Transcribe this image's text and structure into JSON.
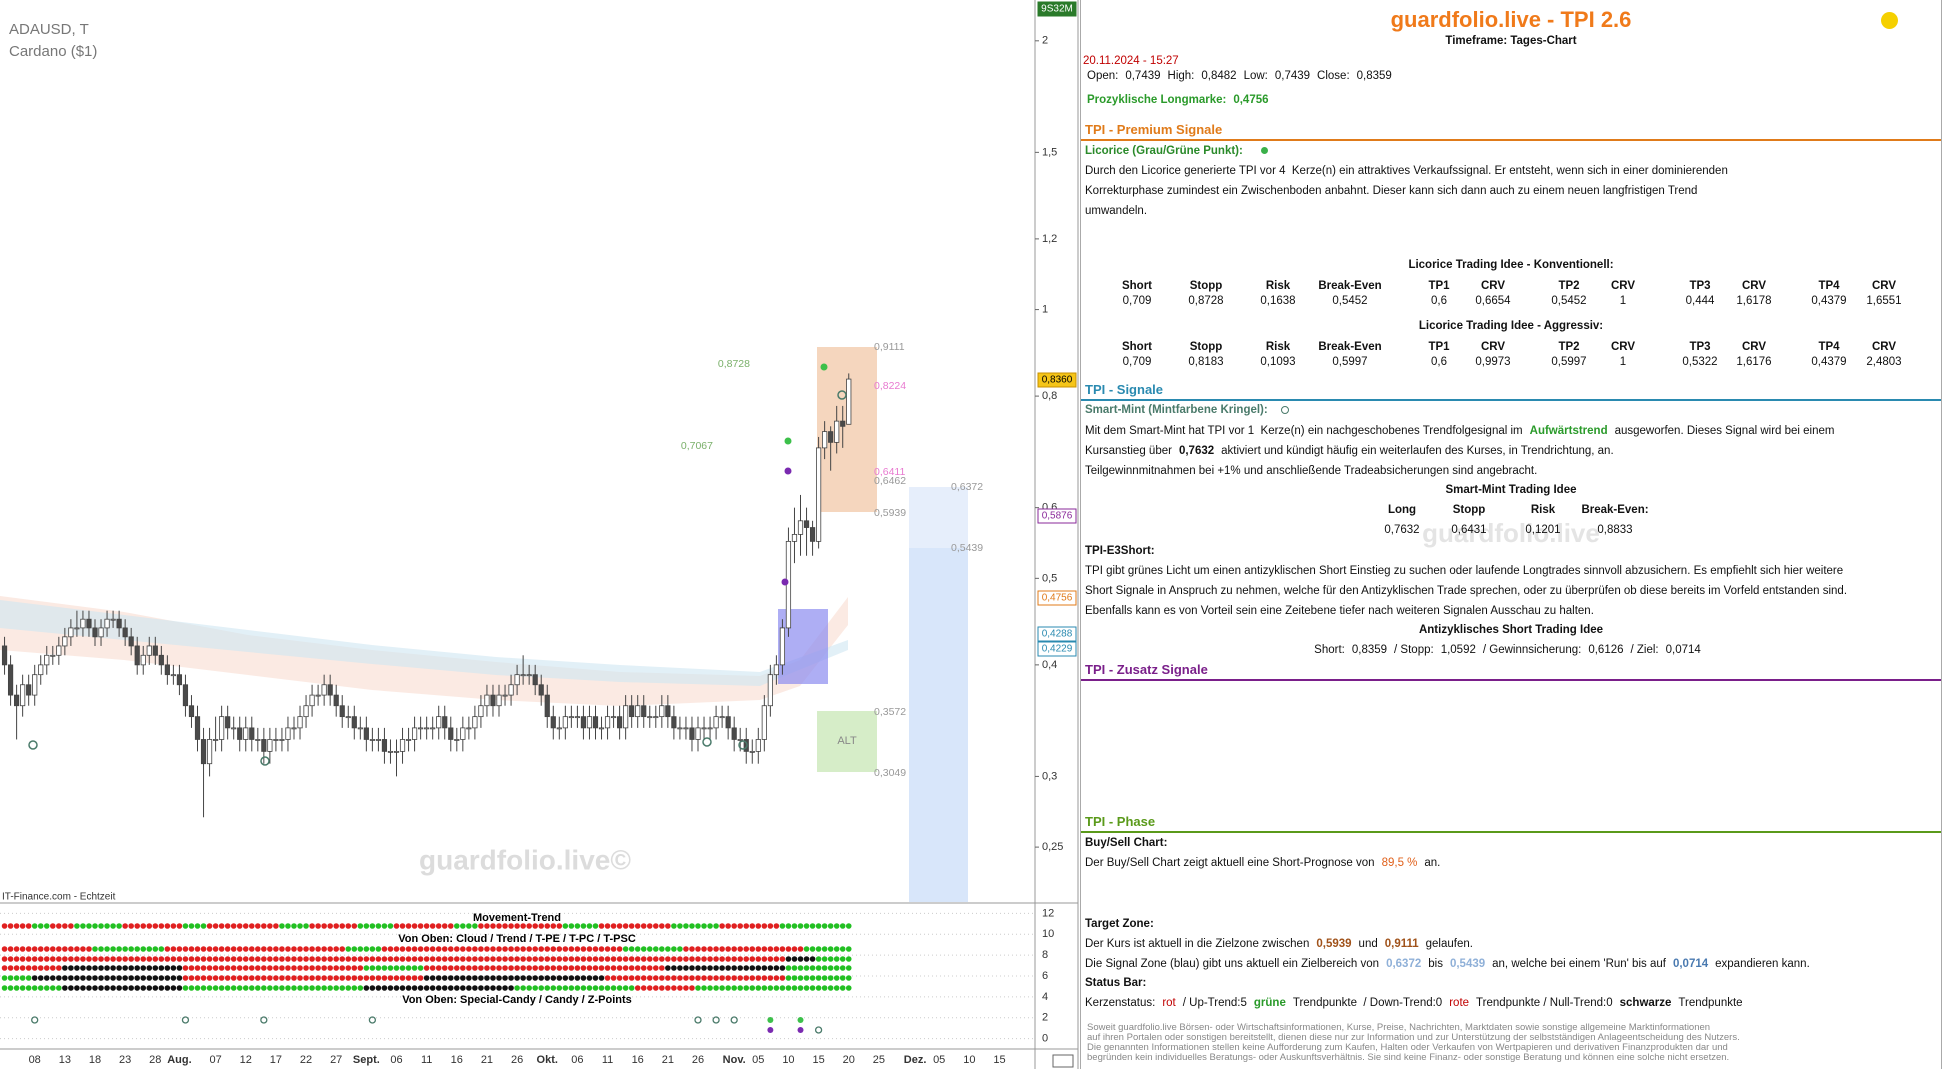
{
  "chart": {
    "type": "candlestick",
    "symbol": "ADAUSD, T",
    "name": "Cardano ($1)",
    "source": "IT-Finance.com - Echtzeit",
    "watermark": "guardfolio.live©",
    "log_scale": true,
    "grid": false,
    "up_color": "#ffffff",
    "down_color": "#4a4a4a",
    "ylim": [
      0.217,
      2.222
    ],
    "yticks": [
      2,
      {
        "value": 1.5,
        "label": "1,5"
      },
      {
        "value": 1.2,
        "label": "1,2"
      },
      1,
      {
        "value": 0.8,
        "label": "0,8"
      },
      {
        "value": 0.6,
        "label": "0,6"
      },
      {
        "value": 0.5,
        "label": "0,5"
      },
      {
        "value": 0.4,
        "label": "0,4"
      },
      {
        "value": 0.3,
        "label": "0,3"
      },
      {
        "value": 0.25,
        "label": "0,25"
      }
    ],
    "x_labels": [
      "08",
      "13",
      "18",
      "23",
      "28",
      "Aug.",
      "07",
      "12",
      "17",
      "22",
      "27",
      "Sept.",
      "06",
      "11",
      "16",
      "21",
      "26",
      "Okt.",
      "06",
      "11",
      "16",
      "21",
      "26",
      "Nov.",
      "05",
      "10",
      "15",
      "20",
      "25",
      "Dez.",
      "05",
      "10",
      "15"
    ],
    "axis_badges": [
      "9S32M",
      "0,8360",
      "0,5876",
      "0,4756",
      "0,4288",
      "0,4229"
    ],
    "levels": [
      "0,9111",
      "0,8224",
      "0,6411",
      "0,6462",
      "0,5939",
      "0,8728",
      "0,7067",
      "0,6372",
      "0,5439",
      "0,3572",
      "0,3049"
    ],
    "alt_label": "ALT",
    "candles": [
      [
        0.42,
        0.43,
        0.39,
        0.4
      ],
      [
        0.4,
        0.41,
        0.36,
        0.37
      ],
      [
        0.37,
        0.38,
        0.33,
        0.36
      ],
      [
        0.36,
        0.39,
        0.35,
        0.38
      ],
      [
        0.38,
        0.39,
        0.36,
        0.37
      ],
      [
        0.37,
        0.4,
        0.36,
        0.39
      ],
      [
        0.39,
        0.41,
        0.38,
        0.4
      ],
      [
        0.4,
        0.42,
        0.39,
        0.41
      ],
      [
        0.41,
        0.42,
        0.4,
        0.41
      ],
      [
        0.41,
        0.43,
        0.4,
        0.42
      ],
      [
        0.42,
        0.44,
        0.41,
        0.43
      ],
      [
        0.43,
        0.45,
        0.42,
        0.44
      ],
      [
        0.44,
        0.46,
        0.43,
        0.44
      ],
      [
        0.44,
        0.46,
        0.43,
        0.45
      ],
      [
        0.45,
        0.46,
        0.43,
        0.44
      ],
      [
        0.44,
        0.45,
        0.42,
        0.43
      ],
      [
        0.43,
        0.45,
        0.42,
        0.44
      ],
      [
        0.44,
        0.46,
        0.43,
        0.45
      ],
      [
        0.45,
        0.46,
        0.44,
        0.45
      ],
      [
        0.45,
        0.46,
        0.43,
        0.44
      ],
      [
        0.44,
        0.45,
        0.42,
        0.43
      ],
      [
        0.43,
        0.44,
        0.41,
        0.42
      ],
      [
        0.42,
        0.43,
        0.39,
        0.4
      ],
      [
        0.4,
        0.42,
        0.39,
        0.41
      ],
      [
        0.41,
        0.43,
        0.4,
        0.42
      ],
      [
        0.42,
        0.43,
        0.4,
        0.41
      ],
      [
        0.41,
        0.42,
        0.39,
        0.4
      ],
      [
        0.4,
        0.41,
        0.38,
        0.39
      ],
      [
        0.39,
        0.4,
        0.38,
        0.39
      ],
      [
        0.39,
        0.4,
        0.37,
        0.38
      ],
      [
        0.38,
        0.39,
        0.35,
        0.36
      ],
      [
        0.36,
        0.37,
        0.34,
        0.35
      ],
      [
        0.35,
        0.36,
        0.32,
        0.33
      ],
      [
        0.33,
        0.34,
        0.27,
        0.31
      ],
      [
        0.31,
        0.34,
        0.3,
        0.33
      ],
      [
        0.33,
        0.35,
        0.32,
        0.33
      ],
      [
        0.33,
        0.36,
        0.32,
        0.35
      ],
      [
        0.35,
        0.36,
        0.33,
        0.34
      ],
      [
        0.34,
        0.35,
        0.33,
        0.34
      ],
      [
        0.34,
        0.35,
        0.32,
        0.33
      ],
      [
        0.33,
        0.35,
        0.32,
        0.34
      ],
      [
        0.34,
        0.35,
        0.32,
        0.33
      ],
      [
        0.33,
        0.34,
        0.32,
        0.33
      ],
      [
        0.33,
        0.34,
        0.31,
        0.32
      ],
      [
        0.32,
        0.34,
        0.31,
        0.33
      ],
      [
        0.33,
        0.34,
        0.32,
        0.33
      ],
      [
        0.33,
        0.34,
        0.32,
        0.33
      ],
      [
        0.33,
        0.35,
        0.32,
        0.34
      ],
      [
        0.34,
        0.35,
        0.33,
        0.34
      ],
      [
        0.34,
        0.36,
        0.33,
        0.35
      ],
      [
        0.35,
        0.37,
        0.34,
        0.36
      ],
      [
        0.36,
        0.38,
        0.35,
        0.37
      ],
      [
        0.37,
        0.38,
        0.36,
        0.37
      ],
      [
        0.37,
        0.39,
        0.36,
        0.38
      ],
      [
        0.38,
        0.39,
        0.36,
        0.37
      ],
      [
        0.37,
        0.38,
        0.35,
        0.36
      ],
      [
        0.36,
        0.37,
        0.34,
        0.35
      ],
      [
        0.35,
        0.36,
        0.34,
        0.35
      ],
      [
        0.35,
        0.36,
        0.33,
        0.34
      ],
      [
        0.34,
        0.35,
        0.33,
        0.34
      ],
      [
        0.34,
        0.35,
        0.32,
        0.33
      ],
      [
        0.33,
        0.34,
        0.32,
        0.33
      ],
      [
        0.33,
        0.34,
        0.32,
        0.33
      ],
      [
        0.33,
        0.34,
        0.31,
        0.32
      ],
      [
        0.32,
        0.33,
        0.31,
        0.32
      ],
      [
        0.32,
        0.33,
        0.3,
        0.32
      ],
      [
        0.32,
        0.34,
        0.31,
        0.33
      ],
      [
        0.33,
        0.34,
        0.32,
        0.33
      ],
      [
        0.33,
        0.35,
        0.32,
        0.34
      ],
      [
        0.34,
        0.35,
        0.33,
        0.34
      ],
      [
        0.34,
        0.35,
        0.33,
        0.34
      ],
      [
        0.34,
        0.35,
        0.33,
        0.34
      ],
      [
        0.34,
        0.36,
        0.33,
        0.35
      ],
      [
        0.35,
        0.36,
        0.33,
        0.34
      ],
      [
        0.34,
        0.35,
        0.32,
        0.33
      ],
      [
        0.33,
        0.34,
        0.32,
        0.33
      ],
      [
        0.33,
        0.35,
        0.32,
        0.34
      ],
      [
        0.34,
        0.35,
        0.33,
        0.34
      ],
      [
        0.34,
        0.36,
        0.33,
        0.35
      ],
      [
        0.35,
        0.37,
        0.34,
        0.36
      ],
      [
        0.36,
        0.38,
        0.35,
        0.37
      ],
      [
        0.37,
        0.38,
        0.35,
        0.36
      ],
      [
        0.36,
        0.38,
        0.35,
        0.37
      ],
      [
        0.37,
        0.38,
        0.36,
        0.37
      ],
      [
        0.37,
        0.39,
        0.36,
        0.38
      ],
      [
        0.38,
        0.4,
        0.37,
        0.39
      ],
      [
        0.39,
        0.41,
        0.38,
        0.39
      ],
      [
        0.39,
        0.4,
        0.38,
        0.39
      ],
      [
        0.39,
        0.4,
        0.37,
        0.38
      ],
      [
        0.38,
        0.39,
        0.36,
        0.37
      ],
      [
        0.37,
        0.38,
        0.34,
        0.35
      ],
      [
        0.35,
        0.36,
        0.33,
        0.34
      ],
      [
        0.34,
        0.35,
        0.33,
        0.34
      ],
      [
        0.34,
        0.36,
        0.33,
        0.35
      ],
      [
        0.35,
        0.36,
        0.34,
        0.35
      ],
      [
        0.35,
        0.36,
        0.34,
        0.35
      ],
      [
        0.35,
        0.36,
        0.33,
        0.34
      ],
      [
        0.34,
        0.36,
        0.33,
        0.35
      ],
      [
        0.35,
        0.36,
        0.33,
        0.34
      ],
      [
        0.34,
        0.35,
        0.33,
        0.34
      ],
      [
        0.34,
        0.36,
        0.33,
        0.35
      ],
      [
        0.35,
        0.36,
        0.34,
        0.35
      ],
      [
        0.35,
        0.36,
        0.33,
        0.34
      ],
      [
        0.34,
        0.37,
        0.33,
        0.36
      ],
      [
        0.36,
        0.37,
        0.34,
        0.35
      ],
      [
        0.35,
        0.37,
        0.34,
        0.36
      ],
      [
        0.36,
        0.37,
        0.34,
        0.35
      ],
      [
        0.35,
        0.36,
        0.34,
        0.35
      ],
      [
        0.35,
        0.36,
        0.34,
        0.35
      ],
      [
        0.35,
        0.37,
        0.34,
        0.36
      ],
      [
        0.36,
        0.37,
        0.34,
        0.35
      ],
      [
        0.35,
        0.36,
        0.33,
        0.34
      ],
      [
        0.34,
        0.35,
        0.33,
        0.34
      ],
      [
        0.34,
        0.35,
        0.33,
        0.34
      ],
      [
        0.34,
        0.35,
        0.32,
        0.33
      ],
      [
        0.33,
        0.35,
        0.32,
        0.34
      ],
      [
        0.34,
        0.35,
        0.33,
        0.34
      ],
      [
        0.34,
        0.35,
        0.33,
        0.34
      ],
      [
        0.34,
        0.36,
        0.33,
        0.35
      ],
      [
        0.35,
        0.36,
        0.34,
        0.35
      ],
      [
        0.35,
        0.36,
        0.33,
        0.34
      ],
      [
        0.34,
        0.35,
        0.32,
        0.33
      ],
      [
        0.33,
        0.34,
        0.32,
        0.33
      ],
      [
        0.33,
        0.34,
        0.31,
        0.32
      ],
      [
        0.32,
        0.33,
        0.31,
        0.32
      ],
      [
        0.32,
        0.34,
        0.31,
        0.33
      ],
      [
        0.33,
        0.37,
        0.32,
        0.36
      ],
      [
        0.36,
        0.4,
        0.35,
        0.39
      ],
      [
        0.39,
        0.41,
        0.38,
        0.4
      ],
      [
        0.4,
        0.45,
        0.39,
        0.44
      ],
      [
        0.44,
        0.57,
        0.43,
        0.55
      ],
      [
        0.55,
        0.6,
        0.52,
        0.56
      ],
      [
        0.56,
        0.62,
        0.53,
        0.58
      ],
      [
        0.58,
        0.6,
        0.53,
        0.57
      ],
      [
        0.57,
        0.58,
        0.53,
        0.55
      ],
      [
        0.55,
        0.72,
        0.54,
        0.7
      ],
      [
        0.7,
        0.75,
        0.68,
        0.73
      ],
      [
        0.73,
        0.74,
        0.66,
        0.71
      ],
      [
        0.71,
        0.78,
        0.69,
        0.75
      ],
      [
        0.75,
        0.78,
        0.7,
        0.74
      ],
      [
        0.7439,
        0.8482,
        0.7439,
        0.8359
      ]
    ]
  },
  "indicator": {
    "title": "Movement-Trend",
    "row_label_1": "Von Oben: Cloud / Trend / T-PE / T-PC / T-PSC",
    "row_label_2": "Von Oben: Special-Candy / Candy / Z-Points",
    "ylim": [
      -0.8,
      12.8
    ],
    "yticks": [
      12,
      10,
      8,
      6,
      4,
      2,
      0
    ]
  },
  "panel": {
    "header": {
      "title": "guardfolio.live - TPI 2.6",
      "timeframe": "Timeframe: Tages-Chart"
    },
    "datetime": "20.11.2024 - 15:27",
    "ohlc": [
      "Open:",
      "0,7439",
      "High:",
      "0,8482",
      "Low:",
      "0,7439",
      "Close:",
      "0,8359"
    ],
    "longmark": [
      "Prozyklische Longmarke:",
      "0,4756"
    ],
    "premium": {
      "title": "TPI - Premium Signale",
      "subtitle": "Licorice (Grau/Grüne Punkt):",
      "text": [
        "Durch den Licorice generierte TPI vor 4  Kerze(n) ein attraktives Verkaufssignal. Er entsteht, wenn sich in einer dominierenden",
        "Korrekturphase zumindest ein Zwischenboden anbahnt. Dieser kann sich dann auch zu einem neuen langfristigen Trend",
        "umwandeln."
      ],
      "konv_title": "Licorice Trading Idee - Konventionell:",
      "columns": [
        "Short",
        "Stopp",
        "Risk",
        "Break-Even",
        "TP1",
        "CRV",
        "TP2",
        "CRV",
        "TP3",
        "CRV",
        "TP4",
        "CRV"
      ],
      "konv_values": [
        "0,709",
        "0,8728",
        "0,1638",
        "0,5452",
        "0,6",
        "0,6654",
        "0,5452",
        "1",
        "0,444",
        "1,6178",
        "0,4379",
        "1,6551"
      ],
      "aggr_title": "Licorice Trading Idee - Aggressiv:",
      "aggr_values": [
        "0,709",
        "0,8183",
        "0,1093",
        "0,5997",
        "0,6",
        "0,9973",
        "0,5997",
        "1",
        "0,5322",
        "1,6176",
        "0,4379",
        "2,4803"
      ]
    },
    "signale": {
      "title": "TPI - Signale",
      "subtitle": "Smart-Mint (Mintfarbene Kringel):",
      "line1": [
        "Mit dem Smart-Mint hat TPI vor 1  Kerze(n) ein nachgeschobenes Trendfolgesignal im",
        "Aufwärtstrend",
        "ausgeworfen. Dieses Signal wird bei einem"
      ],
      "line2": [
        "Kursanstieg über",
        "0,7632",
        "aktiviert und kündigt häufig ein weiterlaufen des Kurses, in Trendrichtung, an."
      ],
      "line3": "Teilgewinnmitnahmen bei +1% und anschließende Tradeabsicherungen sind angebracht.",
      "idea_title": "Smart-Mint Trading Idee",
      "idea_columns": [
        "Long",
        "Stopp",
        "Risk",
        "Break-Even:"
      ],
      "idea_values": [
        "0,7632",
        "0,6431",
        "0,1201",
        "0,8833"
      ],
      "watermark": "guardfolio.live",
      "e3_title": "TPI-E3Short:",
      "e3_text": [
        "TPI gibt grünes Licht um einen antizyklischen Short Einstieg zu suchen oder laufende Longtrades sinnvoll abzusichern. Es empfiehlt sich hier weitere",
        "Short Signale in Anspruch zu nehmen, welche für den Antizyklischen Trade sprechen, oder zu überprüfen ob diese bereits im Vorfeld entstanden sind.",
        "Ebenfalls kann es von Vorteil sein eine Zeitebene tiefer nach weiteren Signalen Ausschau zu halten."
      ],
      "short_title": "Antizyklisches Short Trading Idee",
      "short_line": [
        "Short:",
        "0,8359",
        "/ Stopp:",
        "1,0592",
        "/ Gewinnsicherung:",
        "0,6126",
        "/ Ziel:",
        "0,0714"
      ]
    },
    "zusatz": {
      "title": "TPI - Zusatz Signale"
    },
    "phase": {
      "title": "TPI - Phase",
      "buysell_title": "Buy/Sell Chart:",
      "buysell_line": [
        "Der Buy/Sell Chart zeigt aktuell eine Short-Prognose von",
        "89,5 %",
        "an."
      ],
      "target_title": "Target Zone:",
      "target_line1": [
        "Der Kurs ist aktuell in die Zielzone zwischen",
        "0,5939",
        "und",
        "0,9111",
        "gelaufen."
      ],
      "target_line2": [
        "Die Signal Zone (blau) gibt uns aktuell ein Zielbereich von",
        "0,6372",
        "bis",
        "0,5439",
        "an, welche bei einem 'Run' bis auf",
        "0,0714",
        "expandieren kann."
      ],
      "status_title": "Status Bar:",
      "status_line": [
        "Kerzenstatus:",
        "rot",
        "/ Up-Trend:5",
        "grüne",
        "Trendpunkte  / Down-Trend:0",
        "rote",
        "Trendpunkte / Null-Trend:0",
        "schwarze",
        "Trendpunkte"
      ]
    },
    "disclaimer": [
      "Soweit guardfolio.live Börsen- oder Wirtschaftsinformationen, Kurse, Preise, Nachrichten, Marktdaten sowie sonstige allgemeine Marktinformationen",
      "auf ihren Portalen oder sonstigen bereitstellt, dienen diese nur zur Information und zur Unterstützung der selbstständigen Anlageentscheidung des Nutzers.",
      "Die genannten Informationen stellen keine Aufforderung zum Kaufen, Halten oder Verkaufen von Wertpapieren und derivativen Finanzprodukten dar und",
      "begründen kein individuelles Beratungs- oder Auskunftsverhältnis. Sie sind keine Finanz- oder sonstige Beratung und können eine solche nicht ersetzen."
    ]
  }
}
